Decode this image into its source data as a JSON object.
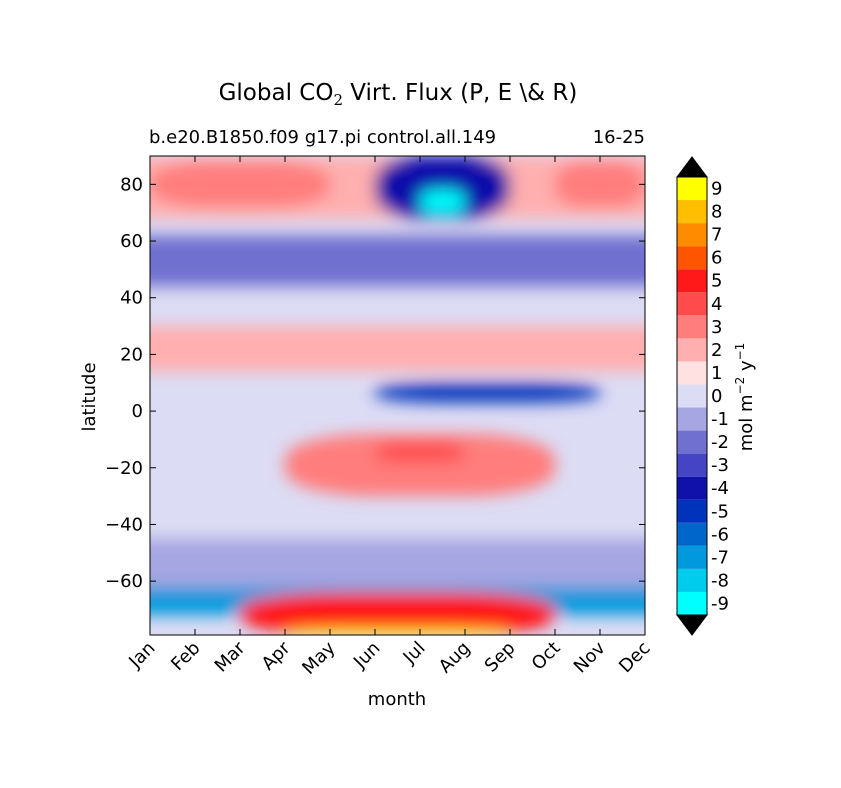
{
  "chart_data": {
    "type": "heatmap",
    "title_prefix": "Global CO",
    "title_subscript": "2",
    "title_suffix": " Virt. Flux (P, E \\& R)",
    "subtitle_left": "b.e20.B1850.f09 g17.pi control.all.149",
    "subtitle_right": "16-25",
    "xlabel": "month",
    "ylabel": "latitude",
    "x_ticks": [
      "Jan",
      "Feb",
      "Mar",
      "Apr",
      "May",
      "Jun",
      "Jul",
      "Aug",
      "Sep",
      "Oct",
      "Nov",
      "Dec"
    ],
    "y_ticks": [
      80,
      60,
      40,
      20,
      0,
      -20,
      -40,
      -60
    ],
    "y_tick_labels": [
      "80",
      "60",
      "40",
      "20",
      "0",
      "−20",
      "−40",
      "−60"
    ],
    "ylim": [
      -79,
      90
    ],
    "xlim": [
      0,
      11
    ],
    "colorbar": {
      "label_prefix": "mol m",
      "label_exp1": "−2",
      "label_mid": " y",
      "label_exp2": "−1",
      "extend": "both",
      "under_color": "#000000",
      "over_color": "#000000",
      "levels": [
        {
          "label": "-9",
          "color": "#00ffff"
        },
        {
          "label": "-8",
          "color": "#00ccee"
        },
        {
          "label": "-7",
          "color": "#0099dd"
        },
        {
          "label": "-6",
          "color": "#0066cc"
        },
        {
          "label": "-5",
          "color": "#0033bb"
        },
        {
          "label": "-4",
          "color": "#1010aa"
        },
        {
          "label": "-3",
          "color": "#4444c4"
        },
        {
          "label": "-2",
          "color": "#7070d0"
        },
        {
          "label": "-1",
          "color": "#a6a6e2"
        },
        {
          "label": "0",
          "color": "#dcdcf4"
        },
        {
          "label": "1",
          "color": "#ffe1e1"
        },
        {
          "label": "2",
          "color": "#ffafaf"
        },
        {
          "label": "3",
          "color": "#ff7d7d"
        },
        {
          "label": "4",
          "color": "#ff4b4b"
        },
        {
          "label": "5",
          "color": "#ff1919"
        },
        {
          "label": "6",
          "color": "#ff5500"
        },
        {
          "label": "7",
          "color": "#ff8c00"
        },
        {
          "label": "8",
          "color": "#ffbf00"
        },
        {
          "label": "9",
          "color": "#ffff00"
        }
      ]
    },
    "contour_regions": [
      {
        "name": "arctic-positive-band",
        "value": 2,
        "months": [
          0,
          11
        ],
        "lat": [
          68,
          90
        ]
      },
      {
        "name": "arctic-winter-max-west",
        "value": 3,
        "months": [
          0,
          4
        ],
        "lat": [
          72,
          88
        ]
      },
      {
        "name": "arctic-winter-max-east",
        "value": 3,
        "months": [
          9,
          11
        ],
        "lat": [
          72,
          88
        ]
      },
      {
        "name": "arctic-summer-min",
        "value": -4,
        "months": [
          5,
          8
        ],
        "lat": [
          68,
          90
        ]
      },
      {
        "name": "arctic-summer-core",
        "value": -9,
        "months": [
          6,
          7
        ],
        "lat": [
          70,
          78
        ]
      },
      {
        "name": "subpolar-north-band",
        "value": -2,
        "months": [
          0,
          11
        ],
        "lat": [
          44,
          62
        ]
      },
      {
        "name": "northern-subtropics",
        "value": 2,
        "months": [
          0,
          11
        ],
        "lat": [
          14,
          30
        ]
      },
      {
        "name": "itcz-negative-band",
        "value": -5,
        "months": [
          5,
          10
        ],
        "lat": [
          3,
          10
        ]
      },
      {
        "name": "southern-subtropics",
        "value": 3,
        "months": [
          3,
          9
        ],
        "lat": [
          -30,
          -8
        ]
      },
      {
        "name": "southern-subtropics-core",
        "value": 4,
        "months": [
          5,
          7
        ],
        "lat": [
          -18,
          -11
        ]
      },
      {
        "name": "southern-ocean-band",
        "value": -1,
        "months": [
          0,
          11
        ],
        "lat": [
          -65,
          -45
        ]
      },
      {
        "name": "antarctic-coast-negative",
        "value": -7,
        "months": [
          0,
          11
        ],
        "lat": [
          -72,
          -62
        ]
      },
      {
        "name": "antarctic-interior-max",
        "value": 5,
        "months": [
          2,
          9
        ],
        "lat": [
          -79,
          -64
        ]
      },
      {
        "name": "antarctic-edge-max",
        "value": 9,
        "months": [
          3,
          8
        ],
        "lat": [
          -79,
          -77
        ]
      }
    ]
  }
}
